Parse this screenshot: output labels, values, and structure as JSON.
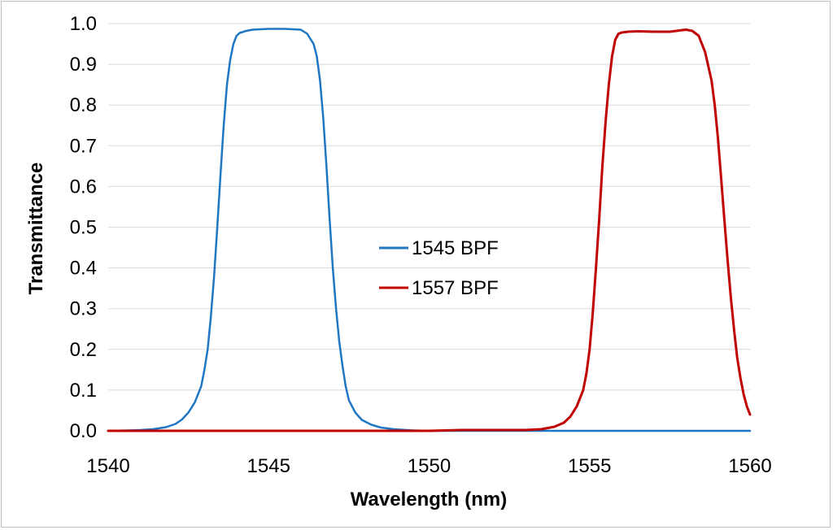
{
  "chart_data": {
    "type": "line",
    "title": "",
    "xlabel": "Wavelength (nm)",
    "ylabel": "Transmittance",
    "xlim": [
      1540,
      1560
    ],
    "ylim": [
      0,
      1.0
    ],
    "xticks": [
      1540,
      1545,
      1550,
      1555,
      1560
    ],
    "xtick_labels": [
      "1540",
      "1545",
      "1550",
      "1555",
      "1560"
    ],
    "yticks": [
      0,
      0.1,
      0.2,
      0.3,
      0.4,
      0.5,
      0.6,
      0.7,
      0.8,
      0.9,
      1.0
    ],
    "ytick_labels": [
      "0.0",
      "0.1",
      "0.2",
      "0.3",
      "0.4",
      "0.5",
      "0.6",
      "0.7",
      "0.8",
      "0.9",
      "1.0"
    ],
    "grid": "horizontal",
    "legend_position": "center",
    "series": [
      {
        "name": "1545 BPF",
        "color": "#1f77c4",
        "x": [
          1540.0,
          1540.6,
          1541.0,
          1541.4,
          1541.8,
          1542.1,
          1542.3,
          1542.5,
          1542.7,
          1542.9,
          1543.0,
          1543.1,
          1543.2,
          1543.3,
          1543.4,
          1543.5,
          1543.6,
          1543.7,
          1543.8,
          1543.9,
          1544.0,
          1544.1,
          1544.3,
          1544.5,
          1545.0,
          1545.5,
          1546.0,
          1546.2,
          1546.4,
          1546.5,
          1546.6,
          1546.7,
          1546.8,
          1546.9,
          1547.0,
          1547.1,
          1547.2,
          1547.3,
          1547.4,
          1547.5,
          1547.7,
          1547.9,
          1548.2,
          1548.5,
          1548.9,
          1549.5,
          1550.0,
          1552.0,
          1555.0,
          1558.0,
          1560.0
        ],
        "y": [
          0.0,
          0.001,
          0.002,
          0.004,
          0.009,
          0.017,
          0.028,
          0.045,
          0.07,
          0.11,
          0.15,
          0.2,
          0.28,
          0.38,
          0.5,
          0.63,
          0.75,
          0.85,
          0.91,
          0.95,
          0.97,
          0.977,
          0.982,
          0.985,
          0.987,
          0.987,
          0.985,
          0.975,
          0.95,
          0.92,
          0.86,
          0.77,
          0.65,
          0.52,
          0.4,
          0.3,
          0.22,
          0.16,
          0.11,
          0.075,
          0.045,
          0.027,
          0.015,
          0.008,
          0.004,
          0.001,
          0.0,
          0.0,
          0.0,
          0.0,
          0.0
        ]
      },
      {
        "name": "1557 BPF",
        "color": "#c00000",
        "x": [
          1540.0,
          1550.0,
          1551.0,
          1553.0,
          1553.5,
          1553.9,
          1554.2,
          1554.4,
          1554.6,
          1554.8,
          1554.9,
          1555.0,
          1555.1,
          1555.2,
          1555.3,
          1555.4,
          1555.5,
          1555.6,
          1555.7,
          1555.8,
          1555.9,
          1556.0,
          1556.2,
          1556.5,
          1557.0,
          1557.5,
          1558.0,
          1558.2,
          1558.4,
          1558.6,
          1558.8,
          1558.9,
          1559.0,
          1559.1,
          1559.2,
          1559.3,
          1559.4,
          1559.5,
          1559.6,
          1559.7,
          1559.8,
          1559.9,
          1560.0
        ],
        "y": [
          0.0,
          0.0,
          0.002,
          0.002,
          0.004,
          0.01,
          0.02,
          0.035,
          0.06,
          0.1,
          0.14,
          0.2,
          0.29,
          0.4,
          0.52,
          0.65,
          0.76,
          0.85,
          0.92,
          0.96,
          0.975,
          0.978,
          0.98,
          0.981,
          0.98,
          0.98,
          0.985,
          0.982,
          0.97,
          0.93,
          0.86,
          0.8,
          0.72,
          0.62,
          0.52,
          0.42,
          0.33,
          0.25,
          0.18,
          0.13,
          0.09,
          0.06,
          0.04
        ]
      }
    ]
  }
}
